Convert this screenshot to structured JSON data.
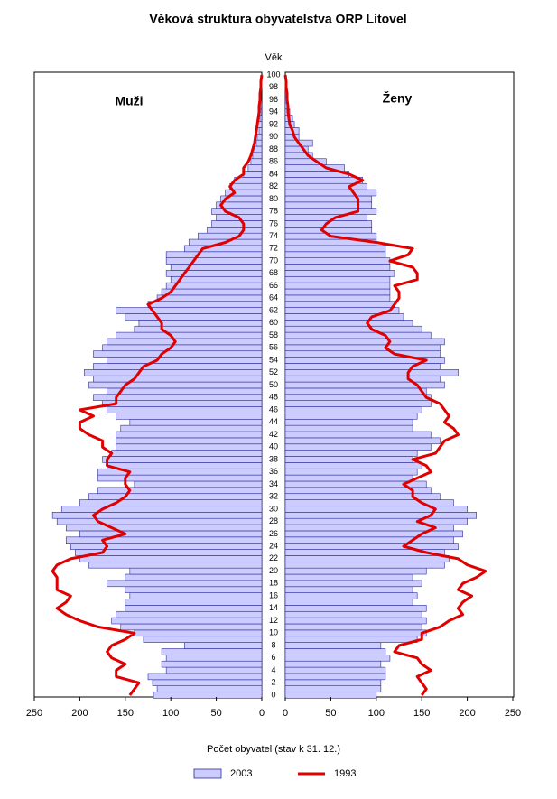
{
  "chart_data": {
    "type": "pyramid",
    "title": "Věková struktura obyvatelstva ORP Litovel",
    "age_label": "Věk",
    "left_label": "Muži",
    "right_label": "Ženy",
    "x_label": "Počet obyvatel (stav k 31. 12.)",
    "categories": [
      0,
      null,
      2,
      null,
      4,
      null,
      6,
      null,
      8,
      null,
      10,
      null,
      12,
      null,
      14,
      null,
      16,
      null,
      18,
      null,
      20,
      null,
      22,
      null,
      24,
      null,
      26,
      null,
      28,
      null,
      30,
      null,
      32,
      null,
      34,
      null,
      36,
      null,
      38,
      null,
      40,
      null,
      42,
      null,
      44,
      null,
      46,
      null,
      48,
      null,
      50,
      null,
      52,
      null,
      54,
      null,
      56,
      null,
      58,
      null,
      60,
      null,
      62,
      null,
      64,
      null,
      66,
      null,
      68,
      null,
      70,
      null,
      72,
      null,
      74,
      null,
      76,
      null,
      78,
      null,
      80,
      null,
      82,
      null,
      84,
      null,
      86,
      null,
      88,
      null,
      90,
      null,
      92,
      null,
      94,
      null,
      96,
      null,
      98,
      null,
      100
    ],
    "xlim": [
      0,
      250
    ],
    "xticks": [
      0,
      50,
      100,
      150,
      200,
      250
    ],
    "series": [
      {
        "name": "2003",
        "color": "#ccccff",
        "style": "bar",
        "men": [
          119,
          115,
          120,
          125,
          105,
          110,
          105,
          110,
          85,
          130,
          140,
          155,
          165,
          160,
          150,
          150,
          145,
          150,
          170,
          150,
          145,
          190,
          200,
          205,
          210,
          215,
          200,
          215,
          225,
          230,
          220,
          200,
          190,
          180,
          140,
          180,
          180,
          170,
          175,
          165,
          160,
          160,
          160,
          155,
          145,
          160,
          170,
          175,
          185,
          170,
          190,
          185,
          195,
          185,
          170,
          185,
          175,
          170,
          160,
          140,
          135,
          150,
          160,
          125,
          115,
          110,
          105,
          100,
          105,
          100,
          105,
          105,
          85,
          80,
          70,
          60,
          55,
          50,
          55,
          50,
          45,
          40,
          35,
          30,
          20,
          15,
          12,
          10,
          8,
          6,
          5,
          3,
          5,
          2,
          1,
          1,
          0,
          0,
          0,
          0,
          0
        ],
        "women": [
          100,
          105,
          105,
          110,
          110,
          105,
          115,
          110,
          105,
          145,
          155,
          150,
          155,
          150,
          155,
          140,
          145,
          140,
          150,
          140,
          155,
          175,
          180,
          175,
          190,
          185,
          195,
          185,
          200,
          210,
          200,
          185,
          170,
          160,
          155,
          140,
          145,
          150,
          140,
          145,
          160,
          170,
          160,
          140,
          140,
          145,
          150,
          160,
          160,
          155,
          175,
          170,
          190,
          170,
          175,
          170,
          170,
          175,
          160,
          150,
          140,
          130,
          125,
          120,
          115,
          115,
          115,
          115,
          120,
          115,
          115,
          110,
          110,
          100,
          100,
          95,
          95,
          90,
          100,
          95,
          95,
          100,
          90,
          85,
          70,
          65,
          45,
          30,
          25,
          30,
          15,
          15,
          10,
          8,
          5,
          3,
          2,
          2,
          1,
          1,
          0
        ]
      },
      {
        "name": "1993",
        "color": "#e00000",
        "style": "line",
        "men": [
          145,
          140,
          135,
          160,
          160,
          150,
          165,
          170,
          165,
          150,
          140,
          180,
          200,
          215,
          225,
          215,
          210,
          225,
          225,
          225,
          230,
          225,
          210,
          175,
          170,
          175,
          150,
          165,
          180,
          185,
          175,
          160,
          150,
          145,
          150,
          150,
          145,
          170,
          170,
          165,
          175,
          175,
          190,
          200,
          200,
          185,
          200,
          160,
          160,
          155,
          150,
          140,
          135,
          130,
          115,
          110,
          100,
          95,
          100,
          110,
          110,
          115,
          120,
          125,
          110,
          100,
          95,
          90,
          85,
          80,
          75,
          70,
          65,
          40,
          25,
          20,
          20,
          25,
          40,
          45,
          40,
          30,
          35,
          30,
          20,
          20,
          15,
          12,
          10,
          8,
          7,
          6,
          5,
          4,
          3,
          3,
          2,
          2,
          1,
          1,
          0
        ],
        "women": [
          150,
          155,
          150,
          145,
          160,
          150,
          145,
          120,
          125,
          150,
          150,
          170,
          180,
          195,
          190,
          195,
          205,
          190,
          195,
          210,
          220,
          200,
          190,
          155,
          130,
          140,
          150,
          165,
          145,
          160,
          165,
          150,
          140,
          140,
          130,
          145,
          160,
          155,
          140,
          165,
          170,
          175,
          190,
          185,
          175,
          180,
          175,
          170,
          155,
          150,
          145,
          135,
          135,
          140,
          155,
          120,
          110,
          115,
          110,
          95,
          90,
          95,
          115,
          120,
          125,
          125,
          120,
          145,
          145,
          140,
          115,
          135,
          140,
          100,
          50,
          40,
          45,
          55,
          80,
          80,
          80,
          75,
          70,
          85,
          70,
          45,
          35,
          25,
          20,
          15,
          10,
          8,
          5,
          4,
          3,
          3,
          2,
          2,
          1,
          1,
          0
        ]
      }
    ]
  }
}
